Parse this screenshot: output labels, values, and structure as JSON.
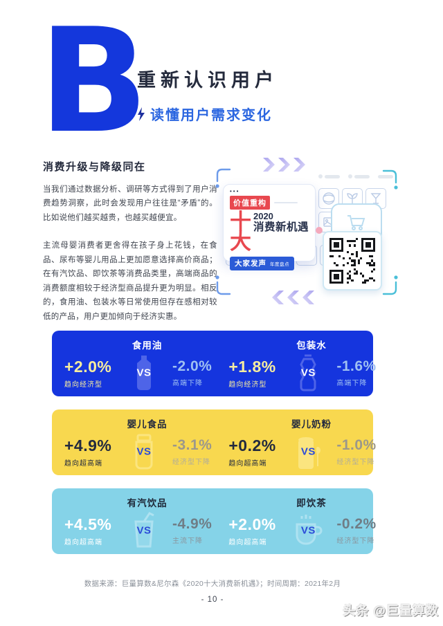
{
  "header": {
    "letter": "B",
    "title": "重新认识用户",
    "subtitle": "读懂用户需求变化"
  },
  "section": {
    "heading": "消费升级与降级同在",
    "para1": "当我们通过数据分析、调研等方式得到了用户消费趋势洞察，此时会发现用户往往是“矛盾”的。比如说他们越买越贵，也越买越便宜。",
    "para2": "主流母婴消费者更舍得在孩子身上花钱，在食品、尿布等婴儿用品上更加愿意选择高价商品；在有汽饮品、即饮茶等消费品类里，高端商品的消费额度相较于经济型商品提升更为明显。相反的，食用油、包装水等日常使用但存在感相对较低的产品，用户更加倾向于经济实惠。"
  },
  "poster": {
    "dots": "•••",
    "badge_top": "价值重构",
    "big_text": "十大",
    "year": "2020",
    "title": "消费新机遇",
    "badge_bottom": "大家发声",
    "badge_bottom_note": "年度盘点"
  },
  "cards": [
    {
      "theme": "blue",
      "bg": "#1535DE",
      "items": [
        {
          "title": "食用油",
          "icon": "oil-bottle-icon",
          "plus": "+2.0%",
          "plus_label": "趋向经济型",
          "vs": "VS",
          "minus": "-2.0%",
          "minus_label": "高端下降"
        },
        {
          "title": "包装水",
          "icon": "water-bottle-icon",
          "plus": "+1.8%",
          "plus_label": "趋向经济型",
          "vs": "VS",
          "minus": "-1.6%",
          "minus_label": "高端下降"
        }
      ]
    },
    {
      "theme": "yellow",
      "bg": "#F8D84F",
      "items": [
        {
          "title": "婴儿食品",
          "icon": "baby-food-jar-icon",
          "plus": "+4.9%",
          "plus_label": "趋向超高端",
          "vs": "VS",
          "minus": "-3.1%",
          "minus_label": "经济型下降"
        },
        {
          "title": "婴儿奶粉",
          "icon": "milk-powder-can-icon",
          "plus": "+0.2%",
          "plus_label": "趋向超高端",
          "vs": "VS",
          "minus": "-1.0%",
          "minus_label": "经济型下降"
        }
      ]
    },
    {
      "theme": "cyan",
      "bg": "#85D3E8",
      "items": [
        {
          "title": "有汽饮品",
          "icon": "soda-cup-icon",
          "plus": "+4.5%",
          "plus_label": "趋向超高端",
          "vs": "VS",
          "minus": "-4.9%",
          "minus_label": "主流下降"
        },
        {
          "title": "即饮茶",
          "icon": "tea-cup-icon",
          "plus": "+2.0%",
          "plus_label": "趋向超高端",
          "vs": "VS",
          "minus": "-0.2%",
          "minus_label": "经济型下降"
        }
      ]
    }
  ],
  "footer": {
    "source": "数据来源：巨量算数&尼尔森《2020十大消费新机遇》；时间周期：2021年2月",
    "page_number": "- 10 -",
    "watermark": "头条 @巨量算数"
  },
  "colors": {
    "chapter_blue": "#1437DC",
    "title_navy": "#242A3C",
    "subtitle_blue": "#2B66E0",
    "card_blue": "#1535DE",
    "card_yellow": "#F8D84F",
    "card_cyan": "#85D3E8",
    "plus_on_blue": "#F6EC9F",
    "minus_on_blue": "#9FC0F2",
    "vs_blue": "#2B4BD8",
    "poster_red": "#E8484F"
  }
}
